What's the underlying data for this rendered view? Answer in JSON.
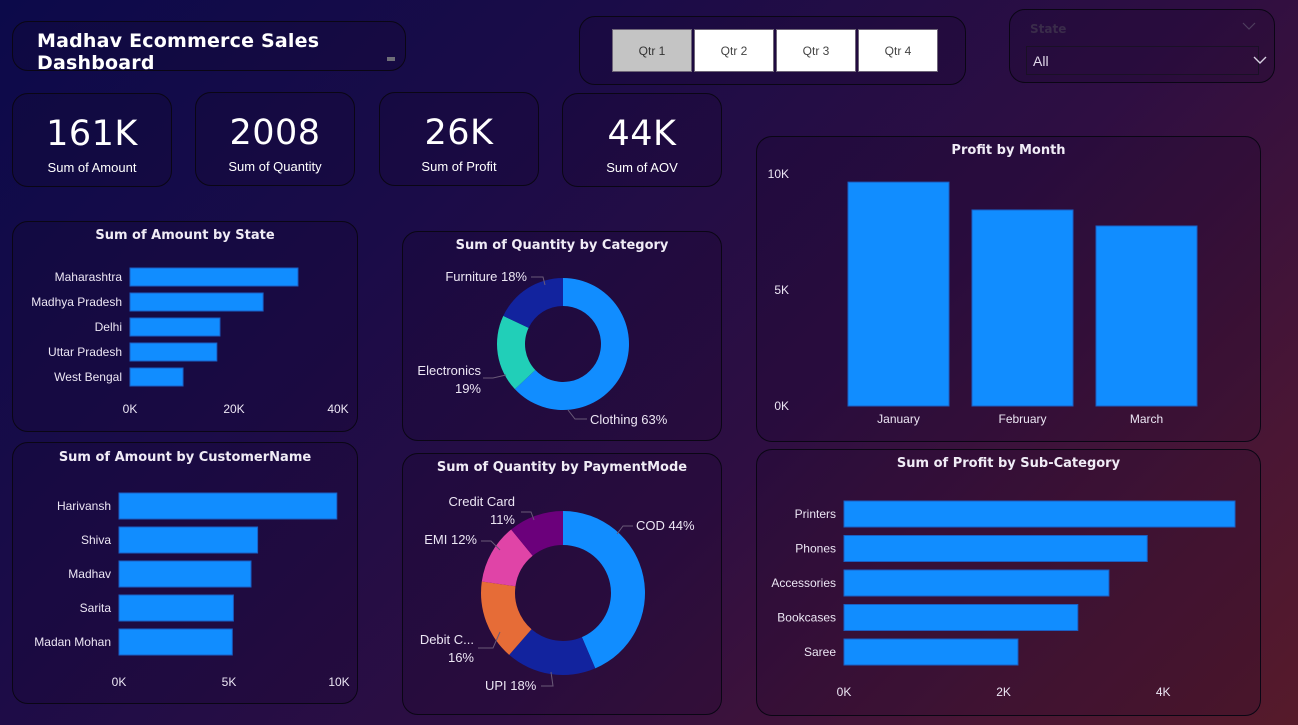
{
  "header": {
    "title": "Madhav Ecommerce Sales Dashboard"
  },
  "quarter_slicer": {
    "buttons": [
      {
        "label": "Qtr 1",
        "selected": true
      },
      {
        "label": "Qtr 2",
        "selected": false
      },
      {
        "label": "Qtr 3",
        "selected": false
      },
      {
        "label": "Qtr 4",
        "selected": false
      }
    ]
  },
  "state_slicer": {
    "label": "State",
    "value": "All"
  },
  "kpis": [
    {
      "value": "161K",
      "label": "Sum of Amount"
    },
    {
      "value": "2008",
      "label": "Sum of Quantity"
    },
    {
      "value": "26K",
      "label": "Sum of Profit"
    },
    {
      "value": "44K",
      "label": "Sum of AOV"
    }
  ],
  "colors": {
    "bar": "#118dff",
    "bar_border": "#1a5fc4"
  },
  "chart_data": [
    {
      "id": "state",
      "type": "bar",
      "orientation": "horizontal",
      "title": "Sum of Amount by State",
      "categories": [
        "Maharashtra",
        "Madhya Pradesh",
        "Delhi",
        "Uttar Pradesh",
        "West Bengal"
      ],
      "values": [
        32300,
        25600,
        17300,
        16700,
        10200
      ],
      "xlim": [
        0,
        40000
      ],
      "xticks": [
        {
          "v": 0,
          "label": "0K"
        },
        {
          "v": 20000,
          "label": "20K"
        },
        {
          "v": 40000,
          "label": "40K"
        }
      ],
      "grid": false
    },
    {
      "id": "customer",
      "type": "bar",
      "orientation": "horizontal",
      "title": "Sum of Amount by CustomerName",
      "categories": [
        "Harivansh",
        "Shiva",
        "Madhav",
        "Sarita",
        "Madan Mohan"
      ],
      "values": [
        9900,
        6300,
        6000,
        5200,
        5150
      ],
      "xlim": [
        0,
        10000
      ],
      "xticks": [
        {
          "v": 0,
          "label": "0K"
        },
        {
          "v": 5000,
          "label": "5K"
        },
        {
          "v": 10000,
          "label": "10K"
        }
      ],
      "grid": false
    },
    {
      "id": "category",
      "type": "pie",
      "donut": true,
      "title": "Sum of Quantity by Category",
      "slices": [
        {
          "label": "Clothing",
          "pct": 63,
          "color": "#118dff",
          "display": "Clothing 63%"
        },
        {
          "label": "Electronics",
          "pct": 19,
          "color": "#21cfb8",
          "display": "Electronics\n19%"
        },
        {
          "label": "Furniture",
          "pct": 18,
          "color": "#12239e",
          "display": "Furniture 18%"
        }
      ]
    },
    {
      "id": "payment",
      "type": "pie",
      "donut": true,
      "title": "Sum of Quantity by PaymentMode",
      "slices": [
        {
          "label": "COD",
          "pct": 44,
          "color": "#118dff",
          "display": "COD 44%"
        },
        {
          "label": "UPI",
          "pct": 18,
          "color": "#12239e",
          "display": "UPI 18%"
        },
        {
          "label": "Debit Card",
          "pct": 16,
          "color": "#e66c37",
          "display": "Debit C...\n16%"
        },
        {
          "label": "EMI",
          "pct": 12,
          "color": "#e044a7",
          "display": "EMI 12%"
        },
        {
          "label": "Credit Card",
          "pct": 11,
          "color": "#6b007b",
          "display": "Credit Card\n11%"
        }
      ]
    },
    {
      "id": "month",
      "type": "bar",
      "orientation": "vertical",
      "title": "Profit by Month",
      "categories": [
        "January",
        "February",
        "March"
      ],
      "values": [
        9650,
        8450,
        7760
      ],
      "ylim": [
        0,
        10000
      ],
      "yticks": [
        {
          "v": 0,
          "label": "0K"
        },
        {
          "v": 5000,
          "label": "5K"
        },
        {
          "v": 10000,
          "label": "10K"
        }
      ],
      "grid": false
    },
    {
      "id": "subcategory",
      "type": "bar",
      "orientation": "horizontal",
      "title": "Sum of Profit by Sub-Category",
      "categories": [
        "Printers",
        "Phones",
        "Accessories",
        "Bookcases",
        "Saree"
      ],
      "values": [
        4900,
        3800,
        3320,
        2930,
        2180
      ],
      "xlim": [
        0,
        4900
      ],
      "xticks": [
        {
          "v": 0,
          "label": "0K"
        },
        {
          "v": 2000,
          "label": "2K"
        },
        {
          "v": 4000,
          "label": "4K"
        }
      ],
      "grid": false
    }
  ]
}
